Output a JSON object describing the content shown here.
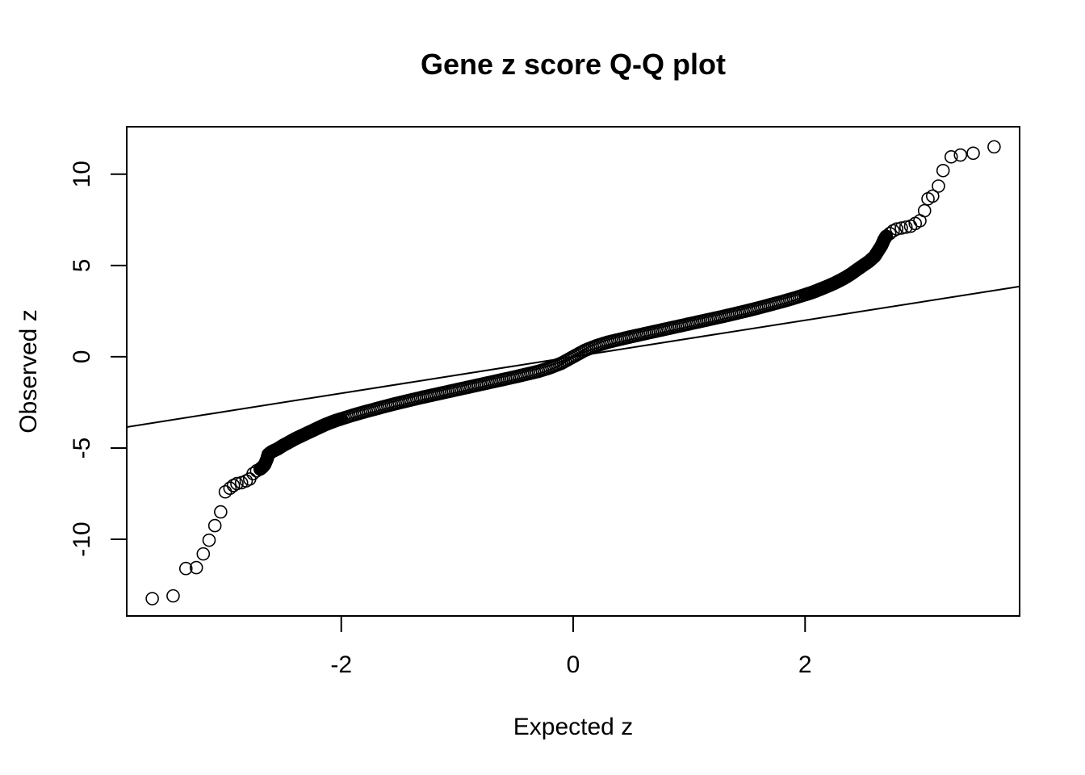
{
  "chart_data": {
    "type": "scatter",
    "title": "Gene z score Q-Q plot",
    "xlabel": "Expected z",
    "ylabel": "Observed z",
    "xlim": [
      -3.85,
      3.85
    ],
    "ylim": [
      -14.2,
      12.6
    ],
    "x_ticks": [
      -2,
      0,
      2
    ],
    "x_tick_labels": [
      "-2",
      "0",
      "2"
    ],
    "y_ticks": [
      -10,
      -5,
      0,
      5,
      10
    ],
    "y_tick_labels": [
      "-10",
      "-5",
      "0",
      "5",
      "10"
    ],
    "grid": false,
    "legend": "none",
    "reference_line": {
      "intercept": 0,
      "slope": 1
    },
    "series": [
      {
        "marker": "open-circle",
        "points": [
          [
            -3.63,
            -13.25
          ],
          [
            -3.45,
            -13.1
          ],
          [
            -3.34,
            -11.6
          ],
          [
            -3.25,
            -11.55
          ],
          [
            -3.19,
            -10.8
          ],
          [
            -3.14,
            -10.05
          ],
          [
            -3.09,
            -9.25
          ],
          [
            -3.04,
            -8.5
          ],
          [
            -3.0,
            -7.4
          ],
          [
            -2.96,
            -7.2
          ],
          [
            -2.93,
            -7.05
          ],
          [
            -2.9,
            -6.95
          ],
          [
            -2.86,
            -6.9
          ],
          [
            -2.82,
            -6.8
          ],
          [
            -2.79,
            -6.7
          ],
          [
            -2.76,
            -6.4
          ],
          [
            -2.73,
            -6.25
          ],
          [
            -2.7,
            -6.15
          ],
          [
            -2.68,
            -6.05
          ],
          [
            -2.66,
            -5.9
          ],
          [
            -2.64,
            -5.6
          ],
          [
            -2.63,
            -5.35
          ],
          [
            -2.6,
            -5.2
          ],
          [
            -2.55,
            -5.05
          ],
          [
            -2.5,
            -4.85
          ],
          [
            -2.45,
            -4.68
          ],
          [
            -2.4,
            -4.5
          ],
          [
            -2.35,
            -4.35
          ],
          [
            -2.3,
            -4.2
          ],
          [
            -2.25,
            -4.05
          ],
          [
            -2.2,
            -3.9
          ],
          [
            -2.15,
            -3.75
          ],
          [
            -2.1,
            -3.62
          ],
          [
            -2.05,
            -3.5
          ],
          [
            -2.0,
            -3.4
          ],
          [
            -1.9,
            -3.2
          ],
          [
            -1.8,
            -3.02
          ],
          [
            -1.7,
            -2.85
          ],
          [
            -1.6,
            -2.68
          ],
          [
            -1.5,
            -2.52
          ],
          [
            -1.4,
            -2.37
          ],
          [
            -1.3,
            -2.22
          ],
          [
            -1.2,
            -2.08
          ],
          [
            -1.1,
            -1.94
          ],
          [
            -1.0,
            -1.8
          ],
          [
            -0.9,
            -1.66
          ],
          [
            -0.8,
            -1.52
          ],
          [
            -0.7,
            -1.38
          ],
          [
            -0.6,
            -1.24
          ],
          [
            -0.5,
            -1.1
          ],
          [
            -0.4,
            -0.95
          ],
          [
            -0.3,
            -0.8
          ],
          [
            -0.2,
            -0.6
          ],
          [
            -0.1,
            -0.35
          ],
          [
            0.0,
            0.0
          ],
          [
            0.1,
            0.35
          ],
          [
            0.2,
            0.6
          ],
          [
            0.3,
            0.8
          ],
          [
            0.4,
            0.95
          ],
          [
            0.5,
            1.1
          ],
          [
            0.6,
            1.24
          ],
          [
            0.7,
            1.38
          ],
          [
            0.8,
            1.52
          ],
          [
            0.9,
            1.66
          ],
          [
            1.0,
            1.8
          ],
          [
            1.1,
            1.94
          ],
          [
            1.2,
            2.08
          ],
          [
            1.3,
            2.22
          ],
          [
            1.4,
            2.37
          ],
          [
            1.5,
            2.52
          ],
          [
            1.6,
            2.68
          ],
          [
            1.7,
            2.85
          ],
          [
            1.8,
            3.02
          ],
          [
            1.9,
            3.2
          ],
          [
            2.0,
            3.4
          ],
          [
            2.05,
            3.5
          ],
          [
            2.1,
            3.62
          ],
          [
            2.15,
            3.75
          ],
          [
            2.2,
            3.88
          ],
          [
            2.25,
            4.02
          ],
          [
            2.3,
            4.18
          ],
          [
            2.35,
            4.35
          ],
          [
            2.4,
            4.55
          ],
          [
            2.45,
            4.78
          ],
          [
            2.5,
            5.0
          ],
          [
            2.55,
            5.22
          ],
          [
            2.6,
            5.5
          ],
          [
            2.63,
            5.8
          ],
          [
            2.66,
            6.1
          ],
          [
            2.68,
            6.4
          ],
          [
            2.7,
            6.6
          ],
          [
            2.73,
            6.75
          ],
          [
            2.76,
            6.9
          ],
          [
            2.79,
            7.0
          ],
          [
            2.83,
            7.05
          ],
          [
            2.87,
            7.1
          ],
          [
            2.91,
            7.15
          ],
          [
            2.95,
            7.3
          ],
          [
            2.99,
            7.45
          ],
          [
            3.03,
            8.0
          ],
          [
            3.06,
            8.65
          ],
          [
            3.1,
            8.8
          ],
          [
            3.15,
            9.35
          ],
          [
            3.19,
            10.2
          ],
          [
            3.26,
            10.95
          ],
          [
            3.34,
            11.05
          ],
          [
            3.45,
            11.15
          ],
          [
            3.63,
            11.5
          ]
        ]
      }
    ]
  }
}
